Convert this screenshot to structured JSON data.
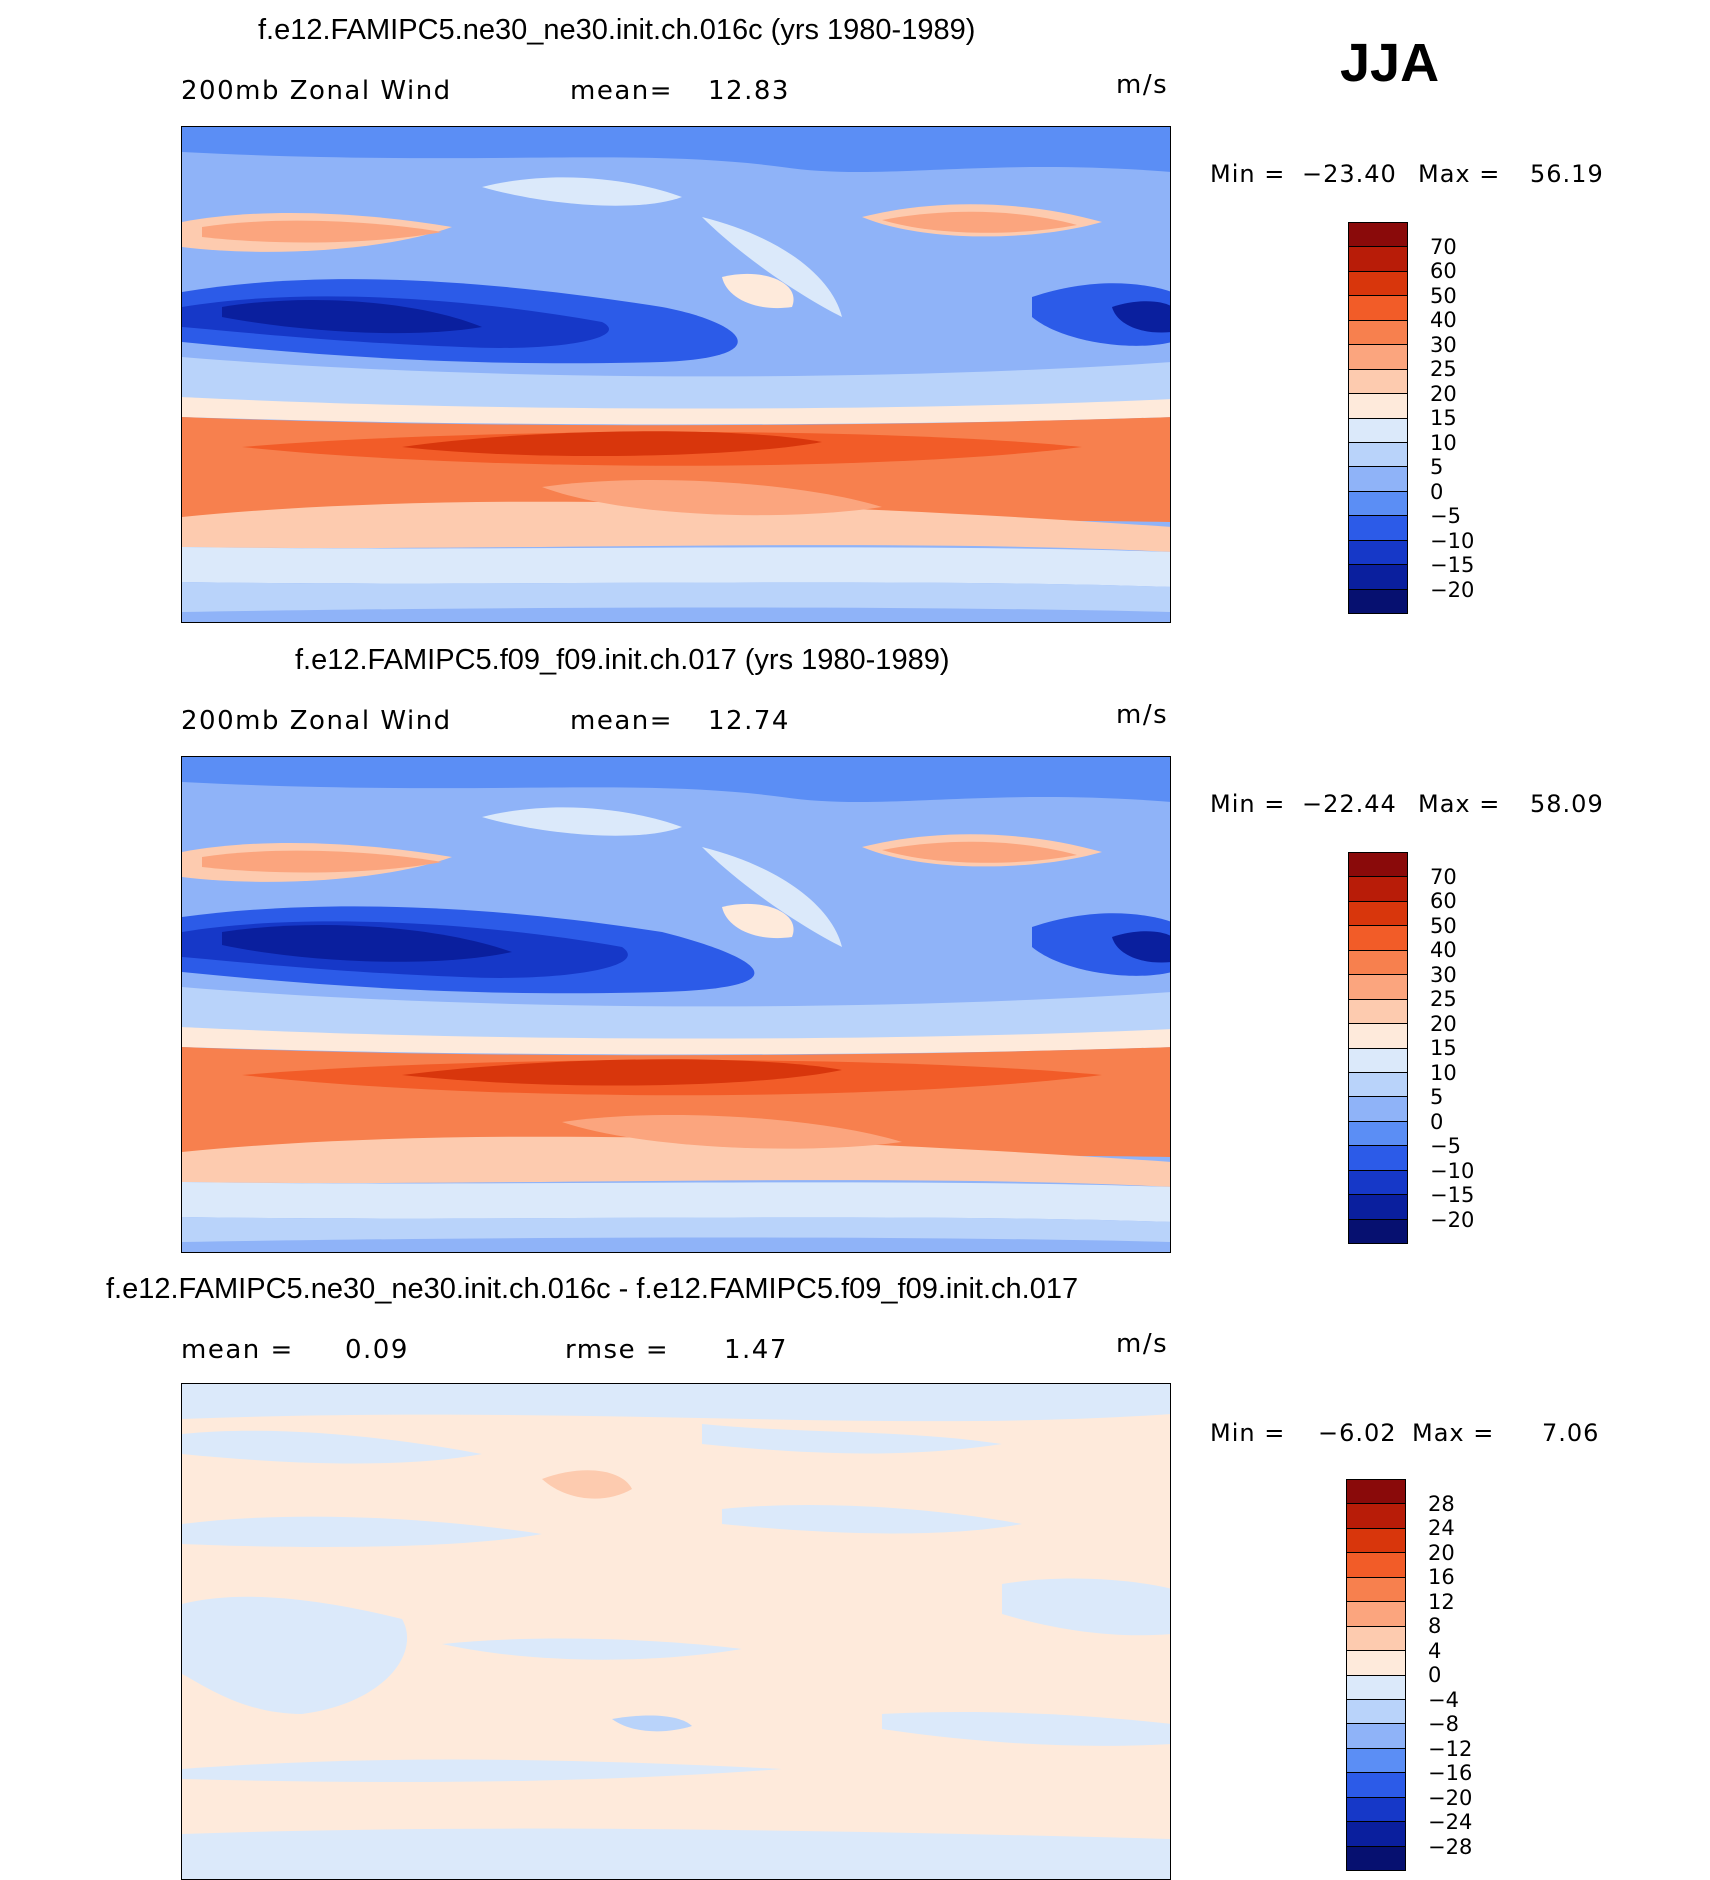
{
  "season": "JJA",
  "panels": [
    {
      "title": "f.e12.FAMIPC5.ne30_ne30.init.ch.016c (yrs 1980-1989)",
      "variable": "200mb Zonal Wind",
      "stat1_label": "mean=",
      "stat1_value": "12.83",
      "stat2_label": "",
      "stat2_value": "",
      "units": "m/s",
      "min_label": "Min =",
      "min_value": "−23.40",
      "max_label": "Max =",
      "max_value": "56.19"
    },
    {
      "title": "f.e12.FAMIPC5.f09_f09.init.ch.017 (yrs 1980-1989)",
      "variable": "200mb Zonal Wind",
      "stat1_label": "mean=",
      "stat1_value": "12.74",
      "stat2_label": "",
      "stat2_value": "",
      "units": "m/s",
      "min_label": "Min =",
      "min_value": "−22.44",
      "max_label": "Max =",
      "max_value": "58.09"
    },
    {
      "title": "f.e12.FAMIPC5.ne30_ne30.init.ch.016c - f.e12.FAMIPC5.f09_f09.init.ch.017",
      "variable": "",
      "stat1_label": "mean =",
      "stat1_value": "0.09",
      "stat2_label": "rmse =",
      "stat2_value": "1.47",
      "units": "m/s",
      "min_label": "Min =",
      "min_value": "−6.02",
      "max_label": "Max =",
      "max_value": "7.06"
    }
  ],
  "colorbar_wind": {
    "labels": [
      "70",
      "60",
      "50",
      "40",
      "30",
      "25",
      "20",
      "15",
      "10",
      "5",
      "0",
      "−5",
      "−10",
      "−15",
      "−20"
    ],
    "colors": [
      "#8a0a0a",
      "#b81c08",
      "#d8360c",
      "#f25c28",
      "#f7804e",
      "#fba57e",
      "#fdcbaf",
      "#feeadb",
      "#dbe9fa",
      "#b9d3fa",
      "#8fb3f8",
      "#5b8ef5",
      "#2c5be8",
      "#1638c8",
      "#0a1f9e",
      "#061070"
    ]
  },
  "colorbar_diff": {
    "labels": [
      "28",
      "24",
      "20",
      "16",
      "12",
      "8",
      "4",
      "0",
      "−4",
      "−8",
      "−12",
      "−16",
      "−20",
      "−24",
      "−28"
    ],
    "colors": [
      "#8a0a0a",
      "#b81c08",
      "#d8360c",
      "#f25c28",
      "#f7804e",
      "#fba57e",
      "#fdcbaf",
      "#feeadb",
      "#dbe9fa",
      "#b9d3fa",
      "#8fb3f8",
      "#5b8ef5",
      "#2c5be8",
      "#1638c8",
      "#0a1f9e",
      "#061070"
    ]
  }
}
